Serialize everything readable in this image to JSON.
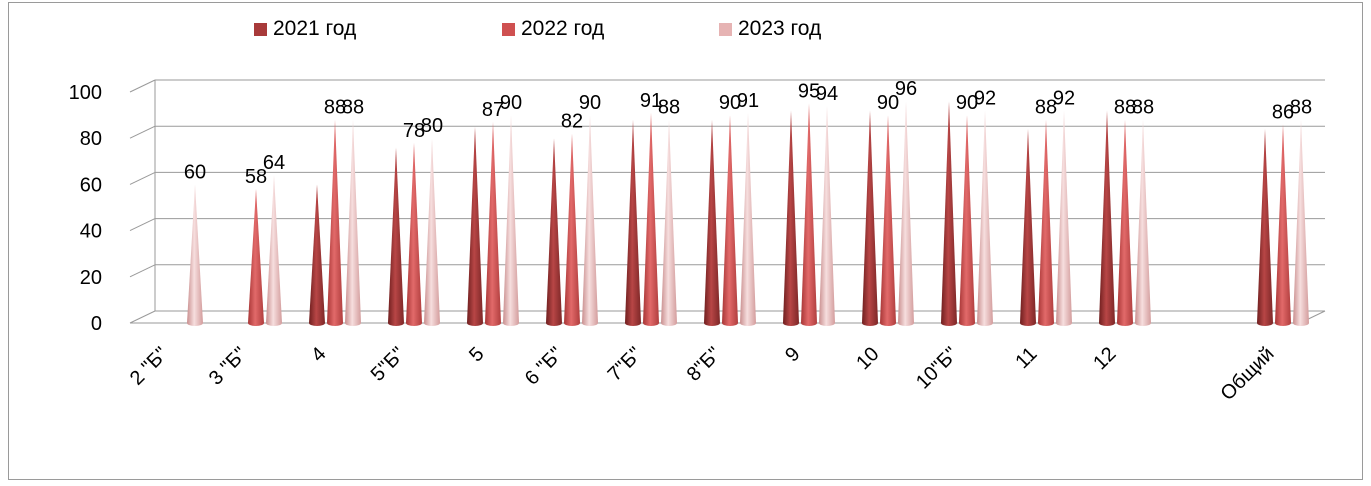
{
  "chart_data": {
    "type": "bar",
    "style": "3d-cone",
    "categories": [
      "2 \"Б\"",
      "3 \"Б\"",
      "4",
      "5\"Б\"",
      "5",
      "6 \"Б\"",
      "7\"Б\"",
      "8\"Б\"",
      "9",
      "10",
      "10\"Б\"",
      "11",
      "12",
      "Общий"
    ],
    "series": [
      {
        "name": "2021  год",
        "color": "#a83a3a",
        "values": [
          null,
          null,
          60,
          76,
          85,
          80,
          88,
          88,
          92,
          92,
          96,
          84,
          92,
          84
        ],
        "labels": [
          null,
          null,
          null,
          null,
          null,
          null,
          null,
          null,
          null,
          null,
          null,
          null,
          null,
          null
        ]
      },
      {
        "name": "2022 год",
        "color": "#cf5050",
        "values": [
          null,
          58,
          88,
          78,
          87,
          82,
          91,
          90,
          95,
          90,
          90,
          88,
          88,
          86
        ],
        "labels": [
          "",
          "58",
          "88",
          "78",
          "87",
          "82",
          "91",
          "90",
          "95",
          "90",
          "90",
          "88",
          "88",
          "86"
        ]
      },
      {
        "name": "2023 год",
        "color": "#e6b3b3",
        "values": [
          60,
          64,
          88,
          80,
          90,
          90,
          88,
          91,
          94,
          96,
          92,
          92,
          88,
          88
        ],
        "labels": [
          "60",
          "64",
          "88",
          "80",
          "90",
          "90",
          "88",
          "91",
          "94",
          "96",
          "92",
          "92",
          "88",
          "88"
        ]
      }
    ],
    "yticks": [
      "0",
      "20",
      "40",
      "60",
      "80",
      "100"
    ],
    "ylim": [
      0,
      100
    ],
    "grid": true,
    "legend": "top"
  }
}
